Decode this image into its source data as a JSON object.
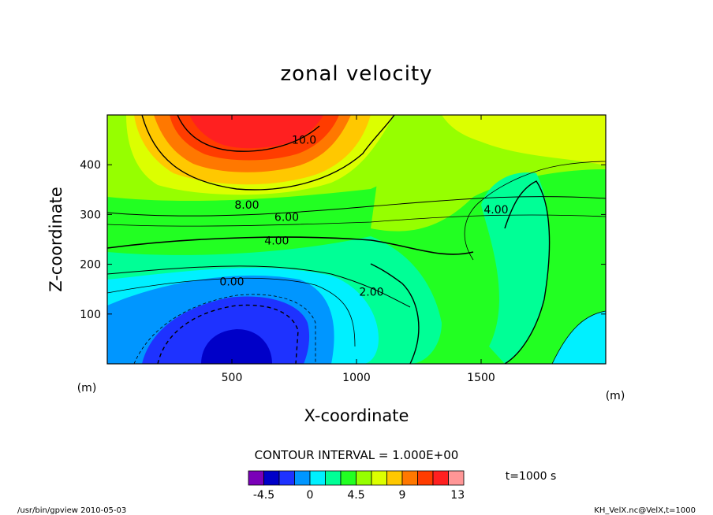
{
  "chart_data": {
    "type": "contour",
    "title": "zonal velocity",
    "xlabel": "X-coordinate",
    "ylabel": "Z-coordinate",
    "x_unit": "(m)",
    "y_unit": "(m)",
    "xlim": [
      0,
      2000
    ],
    "ylim": [
      0,
      500
    ],
    "x_ticks": [
      500,
      1000,
      1500
    ],
    "y_ticks": [
      100,
      200,
      300,
      400
    ],
    "x_tick_labels": [
      "500",
      "1000",
      "1500"
    ],
    "y_tick_labels": [
      "100",
      "200",
      "300",
      "400"
    ],
    "contour_labels": [
      {
        "text": "10.0",
        "x": 790,
        "y": 450
      },
      {
        "text": "8.00",
        "x": 560,
        "y": 320
      },
      {
        "text": "6.00",
        "x": 720,
        "y": 295
      },
      {
        "text": "4.00",
        "x": 680,
        "y": 248
      },
      {
        "text": "4.00",
        "x": 1560,
        "y": 310
      },
      {
        "text": "2.00",
        "x": 1060,
        "y": 145
      },
      {
        "text": "0.00",
        "x": 500,
        "y": 165
      }
    ],
    "contour_interval_text": "CONTOUR INTERVAL = 1.000E+00",
    "time_text": "t=1000 s",
    "colorbar": {
      "tick_labels": [
        "-4.5",
        "0",
        "4.5",
        "9",
        "13"
      ],
      "colors": [
        "#7a00b8",
        "#0000c8",
        "#1e32ff",
        "#0096ff",
        "#00f0ff",
        "#00ff96",
        "#22ff22",
        "#96ff00",
        "#dcff00",
        "#ffc800",
        "#ff7800",
        "#ff3c00",
        "#ff2020",
        "#ff9696"
      ]
    },
    "grid": false,
    "legend": "colorbar-bottom"
  },
  "footer": {
    "left": "/usr/bin/gpview   2010-05-03",
    "right": "KH_VelX.nc@VelX,t=1000"
  }
}
